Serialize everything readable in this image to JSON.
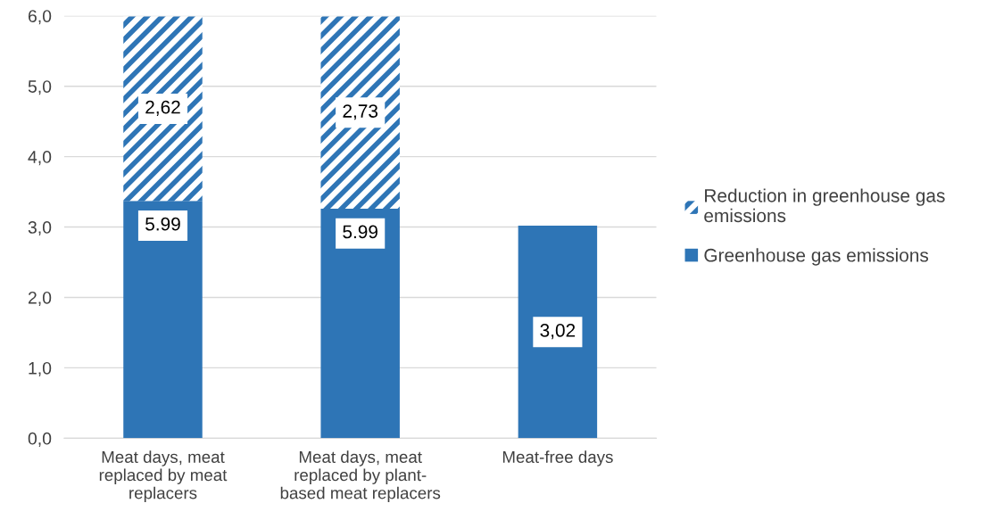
{
  "chart_data": {
    "type": "bar",
    "stacked": true,
    "categories": [
      "Meat days, meat\nreplaced by meat\nreplacers",
      "Meat days, meat\nreplaced by plant-\nbased meat replacers",
      "Meat-free days"
    ],
    "series": [
      {
        "name": "Greenhouse gas emissions",
        "color": "#2e75b6",
        "values": [
          3.37,
          3.26,
          3.02
        ],
        "value_labels": [
          null,
          null,
          "3,02"
        ]
      },
      {
        "name": "Reduction in greenhouse gas\nemissions",
        "color": "#2e75b6",
        "values": [
          2.62,
          2.73,
          null
        ],
        "value_labels": [
          "2,62",
          "2,73",
          null
        ]
      }
    ],
    "ylim": [
      0,
      6
    ],
    "yticks": [
      {
        "value": 0,
        "label": "0,0"
      },
      {
        "value": 1,
        "label": "1,0"
      },
      {
        "value": 2,
        "label": "2,0"
      },
      {
        "value": 3,
        "label": "3,0"
      },
      {
        "value": 4,
        "label": "4,0"
      },
      {
        "value": 5,
        "label": "5,0"
      },
      {
        "value": 6,
        "label": "6,0"
      }
    ],
    "totals": [
      "5.99",
      "5.99",
      null
    ],
    "grid": "y",
    "legend": "right"
  }
}
